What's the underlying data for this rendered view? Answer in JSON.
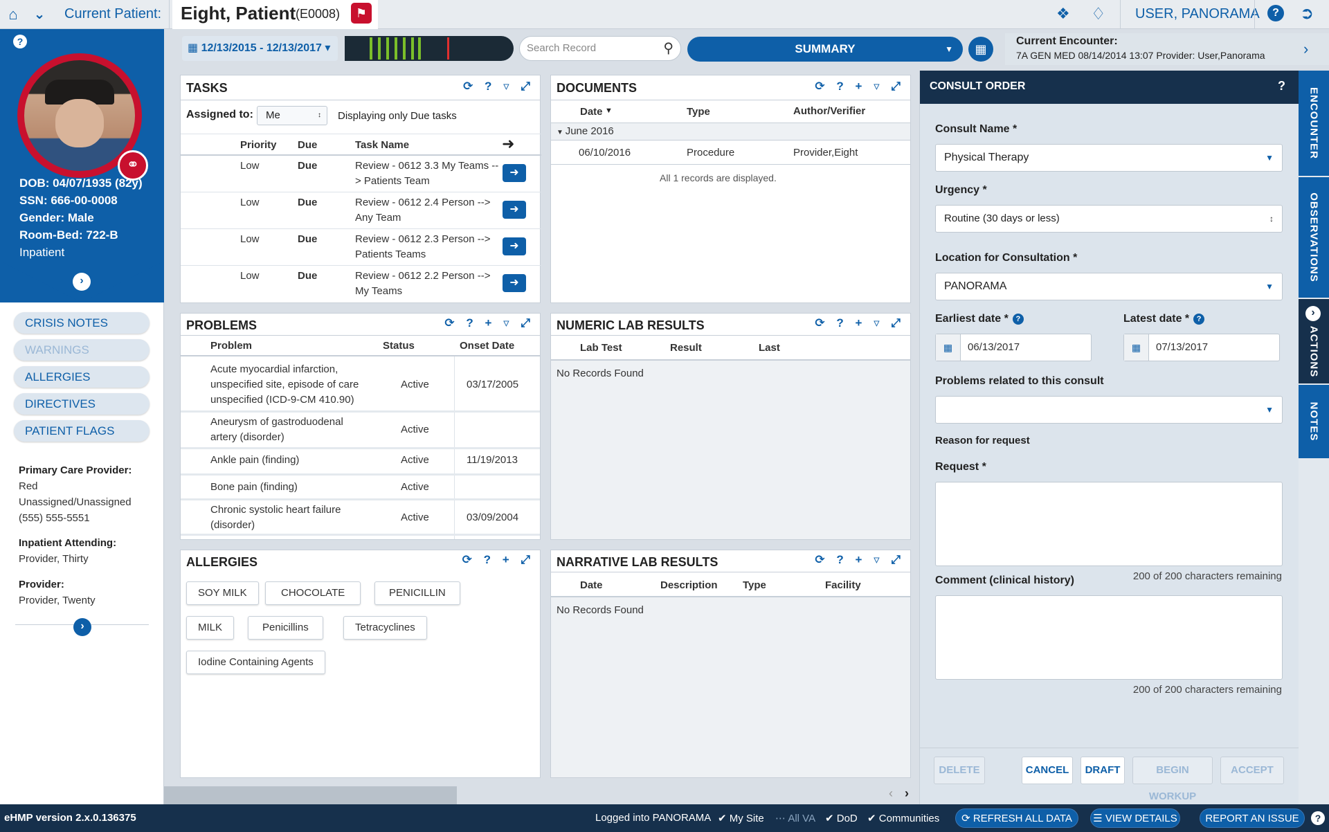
{
  "topbar": {
    "current_patient_label": "Current Patient:",
    "patient_name": "Eight, Patient",
    "patient_id": "(E0008)",
    "user": "USER, PANORAMA"
  },
  "patient": {
    "dob": "DOB: 04/07/1935 (82y)",
    "ssn": "SSN: 666-00-0008",
    "gender": "Gender: Male",
    "room_bed": "Room-Bed: 722-B",
    "status": "Inpatient"
  },
  "sidebar": {
    "nav": [
      "CRISIS NOTES",
      "WARNINGS",
      "ALLERGIES",
      "DIRECTIVES",
      "PATIENT FLAGS"
    ],
    "primary_care_label": "Primary Care Provider:",
    "primary_care_values": [
      "Red",
      "Unassigned/Unassigned",
      "(555) 555-5551"
    ],
    "inpatient_attending_label": "Inpatient Attending:",
    "inpatient_attending_value": "Provider, Thirty",
    "provider_label": "Provider:",
    "provider_value": "Provider, Twenty"
  },
  "toolbar": {
    "date_range": "12/13/2015 - 12/13/2017",
    "search_placeholder": "Search Record",
    "workspace": "SUMMARY",
    "encounter_title": "Current Encounter:",
    "encounter_detail": "7A GEN MED 08/14/2014 13:07   Provider: User,Panorama"
  },
  "tasks": {
    "title": "TASKS",
    "assigned_label": "Assigned to:",
    "assigned_value": "Me",
    "filter_note": "Displaying only Due tasks",
    "columns": [
      "Priority",
      "Due",
      "Task Name"
    ],
    "rows": [
      {
        "priority": "Low",
        "due": "Due",
        "name1": "Review - 0612 3.3 My Teams --",
        "name2": "> Patients Team"
      },
      {
        "priority": "Low",
        "due": "Due",
        "name1": "Review - 0612 2.4 Person -->",
        "name2": "Any Team"
      },
      {
        "priority": "Low",
        "due": "Due",
        "name1": "Review - 0612 2.3 Person -->",
        "name2": "Patients Teams"
      },
      {
        "priority": "Low",
        "due": "Due",
        "name1": "Review - 0612 2.2 Person -->",
        "name2": "My Teams"
      }
    ]
  },
  "documents": {
    "title": "DOCUMENTS",
    "columns": [
      "Date",
      "Type",
      "Author/Verifier"
    ],
    "group": "June 2016",
    "rows": [
      {
        "date": "06/10/2016",
        "type": "Procedure",
        "author": "Provider,Eight"
      }
    ],
    "footer": "All 1 records are displayed."
  },
  "problems": {
    "title": "PROBLEMS",
    "columns": [
      "Problem",
      "Status",
      "Onset Date"
    ],
    "rows": [
      {
        "lines": [
          "Acute myocardial infarction,",
          "unspecified site, episode of care",
          "unspecified (ICD-9-CM 410.90)"
        ],
        "status": "Active",
        "onset": "03/17/2005"
      },
      {
        "lines": [
          "Aneurysm of gastroduodenal",
          "artery (disorder)"
        ],
        "status": "Active",
        "onset": ""
      },
      {
        "lines": [
          "Ankle pain (finding)"
        ],
        "status": "Active",
        "onset": "11/19/2013"
      },
      {
        "lines": [
          "Bone pain (finding)"
        ],
        "status": "Active",
        "onset": ""
      },
      {
        "lines": [
          "Chronic systolic heart failure",
          "(disorder)"
        ],
        "status": "Active",
        "onset": "03/09/2004"
      }
    ]
  },
  "numeric_labs": {
    "title": "NUMERIC LAB RESULTS",
    "columns": [
      "Lab Test",
      "Result",
      "Last"
    ],
    "empty": "No Records Found"
  },
  "allergies": {
    "title": "ALLERGIES",
    "items": [
      "SOY MILK",
      "CHOCOLATE",
      "PENICILLIN",
      "MILK",
      "Penicillins",
      "Tetracyclines",
      "Iodine Containing Agents"
    ]
  },
  "narrative_labs": {
    "title": "NARRATIVE LAB RESULTS",
    "columns": [
      "Date",
      "Description",
      "Type",
      "Facility"
    ],
    "empty": "No Records Found"
  },
  "consult": {
    "title": "CONSULT ORDER",
    "consult_name_label": "Consult Name *",
    "consult_name_value": "Physical Therapy",
    "urgency_label": "Urgency *",
    "urgency_value": "Routine (30 days or less)",
    "location_label": "Location for Consultation *",
    "location_value": "PANORAMA",
    "earliest_label": "Earliest date *",
    "earliest_value": "06/13/2017",
    "latest_label": "Latest date *",
    "latest_value": "07/13/2017",
    "problems_label": "Problems related to this consult",
    "problems_value": "",
    "reason_label": "Reason for request",
    "request_label": "Request *",
    "request_remaining": "200 of 200 characters remaining",
    "comment_label": "Comment (clinical history)",
    "comment_remaining": "200 of 200 characters remaining",
    "buttons": [
      "DELETE",
      "CANCEL",
      "DRAFT",
      "BEGIN WORKUP",
      "ACCEPT"
    ]
  },
  "vertical_tabs": [
    "ENCOUNTER",
    "OBSERVATIONS",
    "ACTIONS",
    "NOTES"
  ],
  "status_bar": {
    "version": "eHMP version 2.x.0.136375",
    "logged_into": "Logged into PANORAMA",
    "my_site": "My Site",
    "all_va": "All VA",
    "dod": "DoD",
    "communities": "Communities",
    "refresh": "REFRESH ALL DATA",
    "view_details": "VIEW DETAILS",
    "report": "REPORT AN ISSUE"
  },
  "colors": {
    "primary": "#0e5fa8",
    "dark": "#16304c",
    "alert": "#c8102e",
    "timeline": "#7bbf2a"
  }
}
